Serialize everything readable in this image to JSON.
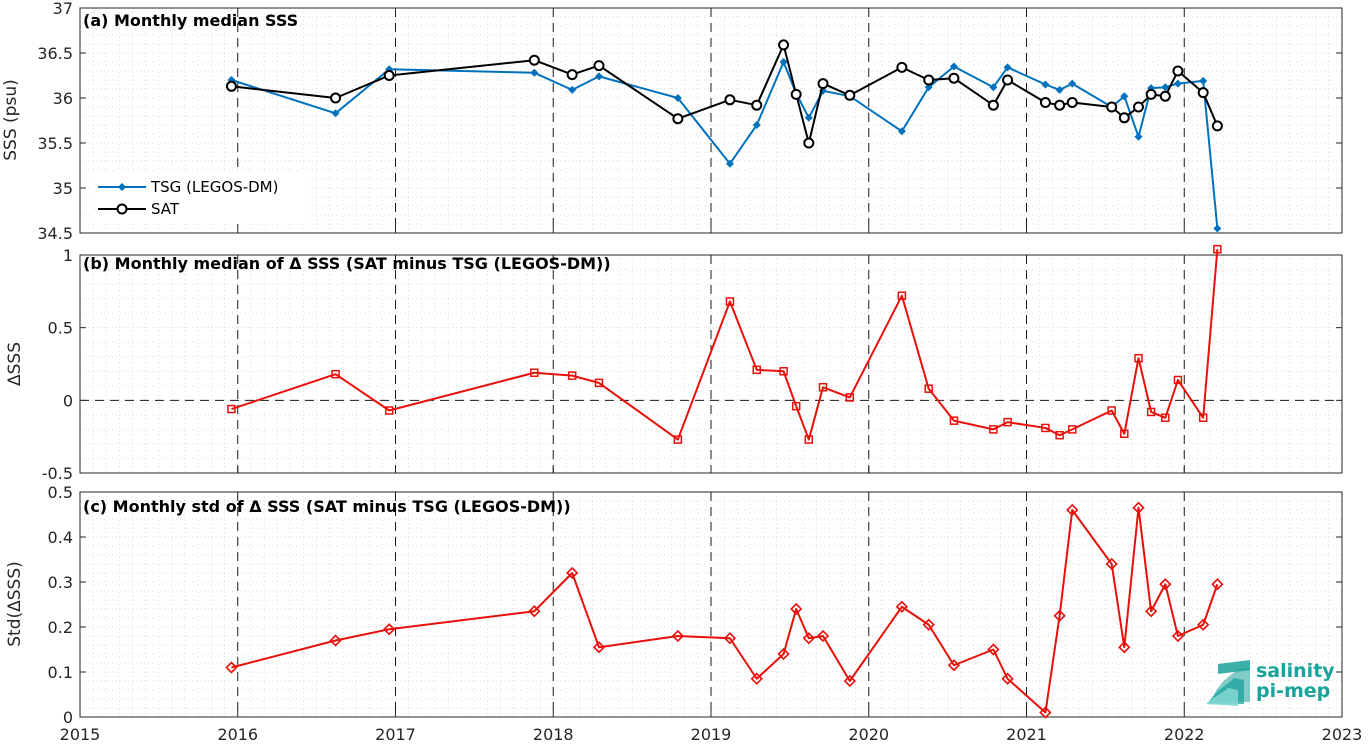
{
  "logo": {
    "line1": "salinity",
    "line2": "pi-mep",
    "color": "#1aa39a"
  },
  "chart_data": [
    {
      "type": "line",
      "title": "(a) Monthly median SSS",
      "ylabel": "SSS (psu)",
      "xlim": [
        2015,
        2023
      ],
      "ylim": [
        34.5,
        37
      ],
      "yticks": [
        34.5,
        35,
        35.5,
        36,
        36.5,
        37
      ],
      "ytick_labels": [
        "34.5",
        "35",
        "35.5",
        "36",
        "36.5",
        "37"
      ],
      "xticks": [
        2015,
        2016,
        2017,
        2018,
        2019,
        2020,
        2021,
        2022,
        2023
      ],
      "xtick_labels": [
        "2015",
        "2016",
        "2017",
        "2018",
        "2019",
        "2020",
        "2021",
        "2022",
        "2023"
      ],
      "grid": true,
      "legend_position": "left",
      "series": [
        {
          "name": "TSG (LEGOS-DM)",
          "color": "#0072bd",
          "marker": "diamond",
          "x": [
            2015.96,
            2016.62,
            2016.96,
            2017.88,
            2018.12,
            2018.29,
            2018.79,
            2019.12,
            2019.29,
            2019.46,
            2019.54,
            2019.62,
            2019.71,
            2019.88,
            2020.21,
            2020.38,
            2020.54,
            2020.79,
            2020.88,
            2021.12,
            2021.21,
            2021.29,
            2021.54,
            2021.62,
            2021.71,
            2021.79,
            2021.88,
            2021.96,
            2022.12,
            2022.21
          ],
          "y": [
            36.2,
            35.83,
            36.32,
            36.28,
            36.09,
            36.24,
            36.0,
            35.27,
            35.7,
            36.4,
            36.05,
            35.78,
            36.08,
            36.02,
            35.63,
            36.12,
            36.35,
            36.12,
            36.34,
            36.15,
            36.09,
            36.16,
            35.9,
            36.02,
            35.57,
            36.11,
            36.12,
            36.16,
            36.19,
            34.55
          ]
        },
        {
          "name": "SAT",
          "color": "#000000",
          "marker": "circle",
          "x": [
            2015.96,
            2016.62,
            2016.96,
            2017.88,
            2018.12,
            2018.29,
            2018.79,
            2019.12,
            2019.29,
            2019.46,
            2019.54,
            2019.62,
            2019.71,
            2019.88,
            2020.21,
            2020.38,
            2020.54,
            2020.79,
            2020.88,
            2021.12,
            2021.21,
            2021.29,
            2021.54,
            2021.62,
            2021.71,
            2021.79,
            2021.88,
            2021.96,
            2022.12,
            2022.21
          ],
          "y": [
            36.13,
            36.0,
            36.25,
            36.42,
            36.26,
            36.36,
            35.77,
            35.98,
            35.92,
            36.59,
            36.04,
            35.5,
            36.16,
            36.03,
            36.34,
            36.2,
            36.22,
            35.92,
            36.2,
            35.95,
            35.92,
            35.95,
            35.9,
            35.78,
            35.9,
            36.04,
            36.02,
            36.3,
            36.06,
            35.69
          ]
        }
      ]
    },
    {
      "type": "line",
      "title": "(b) Monthly median of Δ SSS (SAT minus TSG (LEGOS-DM))",
      "ylabel": "ΔSSS",
      "xlim": [
        2015,
        2023
      ],
      "ylim": [
        -0.5,
        1
      ],
      "yticks": [
        -0.5,
        0,
        0.5,
        1
      ],
      "ytick_labels": [
        "-0.5",
        "0",
        "0.5",
        "1"
      ],
      "xticks": [
        2015,
        2016,
        2017,
        2018,
        2019,
        2020,
        2021,
        2022,
        2023
      ],
      "zero_line": true,
      "grid": true,
      "series": [
        {
          "color": "#e8100a",
          "marker": "square",
          "x": [
            2015.96,
            2016.62,
            2016.96,
            2017.88,
            2018.12,
            2018.29,
            2018.79,
            2019.12,
            2019.29,
            2019.46,
            2019.54,
            2019.62,
            2019.71,
            2019.88,
            2020.21,
            2020.38,
            2020.54,
            2020.79,
            2020.88,
            2021.12,
            2021.21,
            2021.29,
            2021.54,
            2021.62,
            2021.71,
            2021.79,
            2021.88,
            2021.96,
            2022.12,
            2022.21
          ],
          "y": [
            -0.06,
            0.18,
            -0.07,
            0.19,
            0.17,
            0.12,
            -0.27,
            0.68,
            0.21,
            0.2,
            -0.04,
            -0.27,
            0.09,
            0.02,
            0.72,
            0.08,
            -0.14,
            -0.2,
            -0.15,
            -0.19,
            -0.24,
            -0.2,
            -0.07,
            -0.23,
            0.29,
            -0.08,
            -0.12,
            0.14,
            -0.12,
            1.04
          ]
        }
      ]
    },
    {
      "type": "line",
      "title": "(c) Monthly std of Δ SSS (SAT minus TSG (LEGOS-DM))",
      "ylabel": "Std(ΔSSS)",
      "xlim": [
        2015,
        2023
      ],
      "ylim": [
        0,
        0.5
      ],
      "yticks": [
        0,
        0.1,
        0.2,
        0.3,
        0.4,
        0.5
      ],
      "ytick_labels": [
        "0",
        "0.1",
        "0.2",
        "0.3",
        "0.4",
        "0.5"
      ],
      "xticks": [
        2015,
        2016,
        2017,
        2018,
        2019,
        2020,
        2021,
        2022,
        2023
      ],
      "xtick_labels": [
        "2015",
        "2016",
        "2017",
        "2018",
        "2019",
        "2020",
        "2021",
        "2022",
        "2023"
      ],
      "grid": true,
      "series": [
        {
          "color": "#e8100a",
          "marker": "diamond-open",
          "x": [
            2015.96,
            2016.62,
            2016.96,
            2017.88,
            2018.12,
            2018.29,
            2018.79,
            2019.12,
            2019.29,
            2019.46,
            2019.54,
            2019.62,
            2019.71,
            2019.88,
            2020.21,
            2020.38,
            2020.54,
            2020.79,
            2020.88,
            2021.12,
            2021.21,
            2021.29,
            2021.54,
            2021.62,
            2021.71,
            2021.79,
            2021.88,
            2021.96,
            2022.12,
            2022.21
          ],
          "y": [
            0.11,
            0.17,
            0.195,
            0.235,
            0.32,
            0.155,
            0.18,
            0.175,
            0.085,
            0.14,
            0.24,
            0.175,
            0.18,
            0.08,
            0.245,
            0.205,
            0.115,
            0.15,
            0.085,
            0.01,
            0.225,
            0.46,
            0.34,
            0.155,
            0.465,
            0.235,
            0.295,
            0.18,
            0.205,
            0.295
          ]
        }
      ]
    }
  ]
}
